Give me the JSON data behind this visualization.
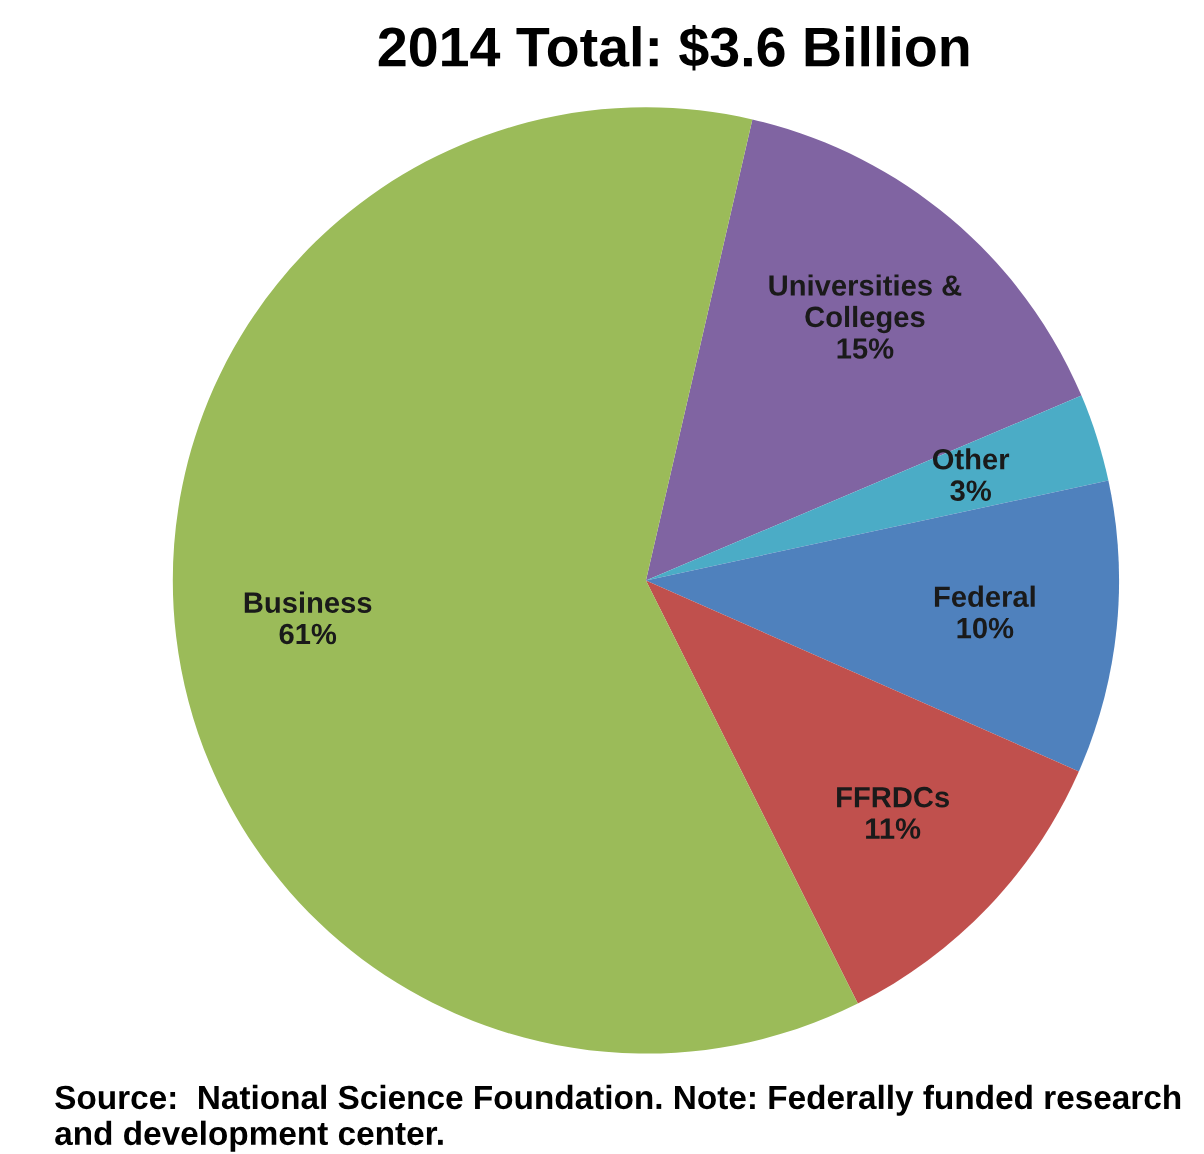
{
  "chart_data": {
    "type": "pie",
    "title": "2014 Total: $3.6 Billion",
    "categories": [
      "Universities &\nColleges",
      "Other",
      "Federal",
      "FFRDCs",
      "Business"
    ],
    "values": [
      15,
      3,
      10,
      11,
      61
    ],
    "value_labels": [
      "15%",
      "3%",
      "10%",
      "11%",
      "61%"
    ],
    "colors": [
      "#8064a2",
      "#4bacc6",
      "#4f81bd",
      "#c0504d",
      "#9bbb59"
    ],
    "annotations": [
      "Source:  National Science Foundation. Note: Federally funded research and development center."
    ]
  }
}
